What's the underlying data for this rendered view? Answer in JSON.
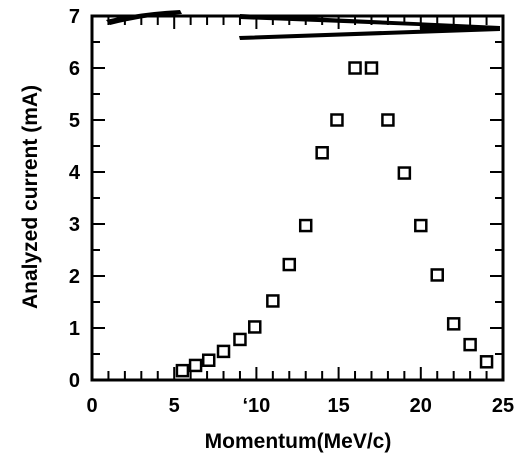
{
  "chart_data": {
    "type": "scatter",
    "title": "",
    "xlabel": "Momentum(MeV/c)",
    "ylabel": "Analyzed current (mA)",
    "xlim": [
      0,
      25
    ],
    "ylim": [
      0,
      7
    ],
    "x_ticks": [
      "0",
      "5",
      "‘10",
      "15",
      "20",
      "25"
    ],
    "x_tick_values": [
      0,
      5,
      10,
      15,
      20,
      25
    ],
    "y_ticks": [
      "0",
      "1",
      "2",
      "3",
      "4",
      "5",
      "6",
      "7"
    ],
    "y_tick_values": [
      0,
      1,
      2,
      3,
      4,
      5,
      6,
      7
    ],
    "marker": "open-square",
    "grid": false,
    "series": [
      {
        "x": [
          5.5,
          6.3,
          7.1,
          8.0,
          9.0,
          9.9,
          11.0,
          12.0,
          13.0,
          14.0,
          14.9,
          16.0,
          17.0,
          18.0,
          19.0,
          20.0,
          21.0,
          22.0,
          23.0,
          24.0
        ],
        "y": [
          0.18,
          0.28,
          0.38,
          0.55,
          0.78,
          1.02,
          1.52,
          2.22,
          2.97,
          4.37,
          5.0,
          6.0,
          6.0,
          5.0,
          3.98,
          2.97,
          2.02,
          1.08,
          0.68,
          0.35
        ]
      }
    ]
  }
}
